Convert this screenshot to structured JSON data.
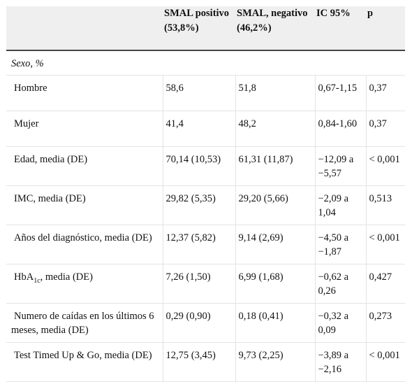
{
  "table": {
    "headers": [
      "",
      "SMAL positivo (53,8%)",
      "SMAL, negativo (46,2%)",
      "IC 95%",
      "p"
    ],
    "section": "Sexo, %",
    "rows": [
      {
        "label": "Hombre",
        "cells": [
          "58,6",
          "51,8",
          "0,67-1,15",
          "0,37"
        ]
      },
      {
        "label": "Mujer",
        "cells": [
          "41,4",
          "48,2",
          "0,84-1,60",
          "0,37"
        ]
      },
      {
        "label": "Edad, media (DE)",
        "cells": [
          "70,14 (10,53)",
          "61,31 (11,87)",
          "−12,09 a −5,57",
          "< 0,001"
        ]
      },
      {
        "label": "IMC, media (DE)",
        "cells": [
          "29,82 (5,35)",
          "29,20 (5,66)",
          "−2,09 a 1,04",
          "0,513"
        ]
      },
      {
        "label": "Años del diagnóstico, media (DE)",
        "cells": [
          "12,37 (5,82)",
          "9,14 (2,69)",
          "−4,50 a −1,87",
          "< 0,001"
        ]
      },
      {
        "label_main": "HbA",
        "label_sub": "1c",
        "label_rest": ", media (DE)",
        "cells": [
          "7,26 (1,50)",
          "6,99 (1,68)",
          "−0,62 a 0,26",
          "0,427"
        ]
      },
      {
        "label": "Numero de caídas en los últimos 6 meses, media (DE)",
        "cells": [
          "0,29 (0,90)",
          "0,18 (0,41)",
          "−0,32 a 0,09",
          "0,273"
        ]
      },
      {
        "label": "Test Timed Up & Go, media (DE)",
        "cells": [
          "12,75 (3,45)",
          "9,73 (2,25)",
          "−3,89 a −2,16",
          "< 0,001"
        ]
      }
    ]
  }
}
